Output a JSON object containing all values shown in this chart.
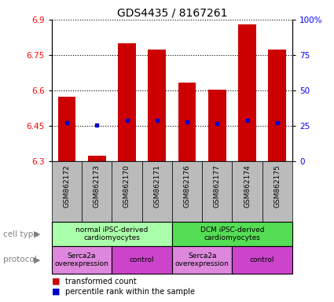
{
  "title": "GDS4435 / 8167261",
  "samples": [
    "GSM862172",
    "GSM862173",
    "GSM862170",
    "GSM862171",
    "GSM862176",
    "GSM862177",
    "GSM862174",
    "GSM862175"
  ],
  "bar_tops": [
    6.575,
    6.325,
    6.8,
    6.775,
    6.635,
    6.605,
    6.88,
    6.775
  ],
  "bar_bottoms": [
    6.3,
    6.3,
    6.3,
    6.3,
    6.3,
    6.3,
    6.3,
    6.3
  ],
  "blue_dot_y": [
    6.465,
    6.455,
    6.475,
    6.475,
    6.468,
    6.462,
    6.475,
    6.465
  ],
  "ylim_left": [
    6.3,
    6.9
  ],
  "ylim_right": [
    0,
    100
  ],
  "yticks_left": [
    6.3,
    6.45,
    6.6,
    6.75,
    6.9
  ],
  "yticks_right": [
    0,
    25,
    50,
    75,
    100
  ],
  "ytick_labels_left": [
    "6.3",
    "6.45",
    "6.6",
    "6.75",
    "6.9"
  ],
  "ytick_labels_right": [
    "0",
    "25",
    "50",
    "75",
    "100%"
  ],
  "bar_color": "#cc0000",
  "dot_color": "#0000cc",
  "bar_width": 0.6,
  "cell_type_colors": [
    "#aaffaa",
    "#55dd55"
  ],
  "cell_type_labels": [
    "normal iPSC-derived\ncardiomyocytes",
    "DCM iPSC-derived\ncardiomyocytes"
  ],
  "cell_type_ranges": [
    [
      0,
      3
    ],
    [
      4,
      7
    ]
  ],
  "protocol_colors": [
    "#dd88dd",
    "#cc44cc",
    "#dd88dd",
    "#cc44cc"
  ],
  "protocol_labels": [
    "Serca2a\noverexpression",
    "control",
    "Serca2a\noverexpression",
    "control"
  ],
  "protocol_ranges": [
    [
      0,
      1
    ],
    [
      2,
      3
    ],
    [
      4,
      5
    ],
    [
      6,
      7
    ]
  ],
  "sample_bg_color": "#bbbbbb",
  "bg_color": "#ffffff",
  "legend_items": [
    {
      "label": "transformed count",
      "color": "#cc0000"
    },
    {
      "label": "percentile rank within the sample",
      "color": "#0000cc"
    }
  ],
  "cell_type_label": "cell type",
  "protocol_label": "protocol"
}
